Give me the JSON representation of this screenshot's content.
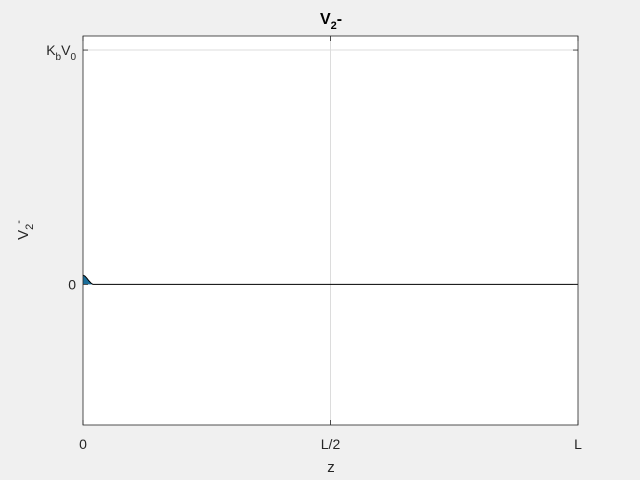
{
  "chart_data": {
    "type": "area",
    "title": "V",
    "title_sub": "2",
    "title_suffix": "-",
    "xlabel": "z",
    "ylabel": "V",
    "ylabel_sub": "2",
    "ylabel_sup": "-",
    "x_ticks": [
      {
        "value": 0,
        "label": "0"
      },
      {
        "value": 0.5,
        "label": "L/2"
      },
      {
        "value": 1,
        "label": "L"
      }
    ],
    "y_ticks": [
      {
        "value": 0,
        "label": "0"
      },
      {
        "value": 1,
        "main": "K",
        "sub1": "b",
        "mid": "V",
        "sub2": "0"
      }
    ],
    "xlim": [
      0,
      1
    ],
    "ylim": [
      -0.6,
      1.06
    ],
    "grid": true,
    "series": [
      {
        "fill_color": "#1a6e9a",
        "line_color": "#000000",
        "x": [
          0,
          0.004,
          0.008,
          0.012,
          0.016,
          0.02,
          1
        ],
        "y": [
          0.04,
          0.035,
          0.026,
          0.015,
          0.006,
          0,
          0
        ]
      }
    ]
  }
}
